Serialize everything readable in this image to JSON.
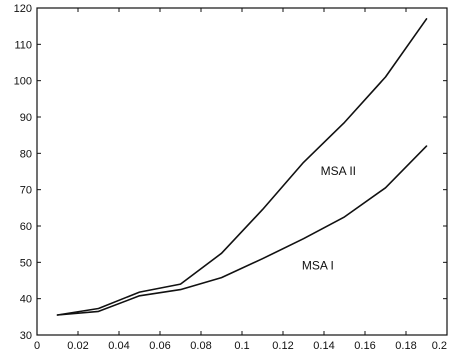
{
  "chart_data": {
    "type": "line",
    "title": "",
    "xlabel": "",
    "ylabel": "",
    "xlim": [
      0,
      0.2
    ],
    "ylim": [
      30,
      120
    ],
    "grid": false,
    "x_ticks": [
      "0.02",
      "0.04",
      "0.06",
      "0.08",
      "0.1",
      "0.12",
      "0.14",
      "0.16",
      "0.18",
      "0.2"
    ],
    "y_ticks": [
      "30",
      "40",
      "50",
      "60",
      "70",
      "80",
      "90",
      "100",
      "110",
      "120"
    ],
    "series": [
      {
        "name": "MSA I",
        "x": [
          0.01,
          0.03,
          0.05,
          0.07,
          0.09,
          0.11,
          0.13,
          0.15,
          0.17,
          0.19
        ],
        "y": [
          35.5,
          36.5,
          40.8,
          42.5,
          45.8,
          51,
          56.5,
          62.5,
          70.5,
          82
        ]
      },
      {
        "name": "MSA II",
        "x": [
          0.01,
          0.03,
          0.05,
          0.07,
          0.09,
          0.11,
          0.13,
          0.15,
          0.17,
          0.19
        ],
        "y": [
          35.5,
          37.3,
          41.8,
          44,
          52.5,
          64.5,
          77.5,
          88.5,
          101,
          117
        ]
      }
    ],
    "annotations": [
      {
        "text": "MSA II",
        "x": 0.147,
        "y": 74
      },
      {
        "text": "MSA I",
        "x": 0.137,
        "y": 48
      }
    ]
  }
}
